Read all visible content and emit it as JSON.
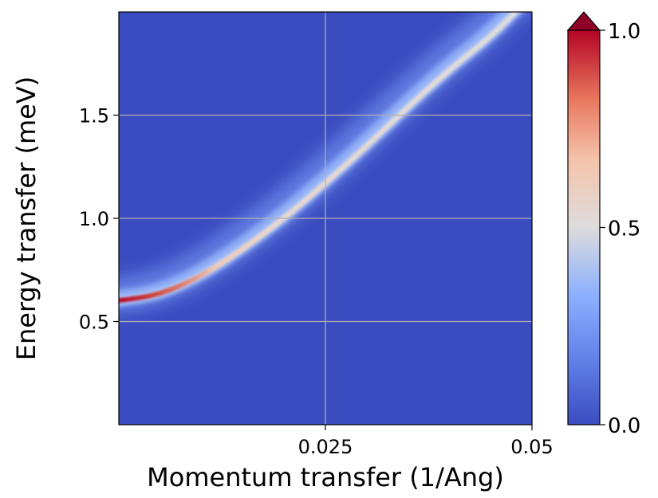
{
  "chart_data": {
    "type": "heatmap",
    "title": "",
    "xlabel": "Momentum transfer (1/Ang)",
    "ylabel": "Energy transfer (meV)",
    "xlim": [
      0,
      0.05
    ],
    "ylim": [
      0,
      2.0
    ],
    "x_ticks": [
      {
        "value": 0.025,
        "label": "0.025"
      },
      {
        "value": 0.05,
        "label": "0.05"
      }
    ],
    "y_ticks": [
      {
        "value": 0.5,
        "label": "0.5"
      },
      {
        "value": 1.0,
        "label": "1.0"
      },
      {
        "value": 1.5,
        "label": "1.5"
      }
    ],
    "grid": true,
    "colormap": "coolwarm",
    "colorbar": {
      "range": [
        0.0,
        1.0
      ],
      "extend": "max",
      "ticks": [
        {
          "value": 0.0,
          "label": "0.0"
        },
        {
          "value": 0.5,
          "label": "0.5"
        },
        {
          "value": 1.0,
          "label": "1.0"
        }
      ]
    },
    "dispersion": {
      "description_free": true,
      "points": [
        {
          "x": 0.0,
          "y": 0.6,
          "intensity": 1.0
        },
        {
          "x": 0.005,
          "y": 0.63,
          "intensity": 0.95
        },
        {
          "x": 0.01,
          "y": 0.72,
          "intensity": 0.75
        },
        {
          "x": 0.015,
          "y": 0.85,
          "intensity": 0.6
        },
        {
          "x": 0.02,
          "y": 1.0,
          "intensity": 0.52
        },
        {
          "x": 0.025,
          "y": 1.17,
          "intensity": 0.48
        },
        {
          "x": 0.03,
          "y": 1.35,
          "intensity": 0.46
        },
        {
          "x": 0.035,
          "y": 1.54,
          "intensity": 0.45
        },
        {
          "x": 0.04,
          "y": 1.72,
          "intensity": 0.45
        },
        {
          "x": 0.045,
          "y": 1.88,
          "intensity": 0.45
        },
        {
          "x": 0.048,
          "y": 2.0,
          "intensity": 0.45
        }
      ]
    },
    "colors": {
      "background": "#3b4cc0",
      "grid": "#b0b0b0",
      "colormap_stops": [
        "#3b4cc0",
        "#7b9ff9",
        "#c0d4f5",
        "#dddcdc",
        "#f2cbb7",
        "#ee8468",
        "#b40426"
      ],
      "extend_color": "#8e0026"
    }
  }
}
